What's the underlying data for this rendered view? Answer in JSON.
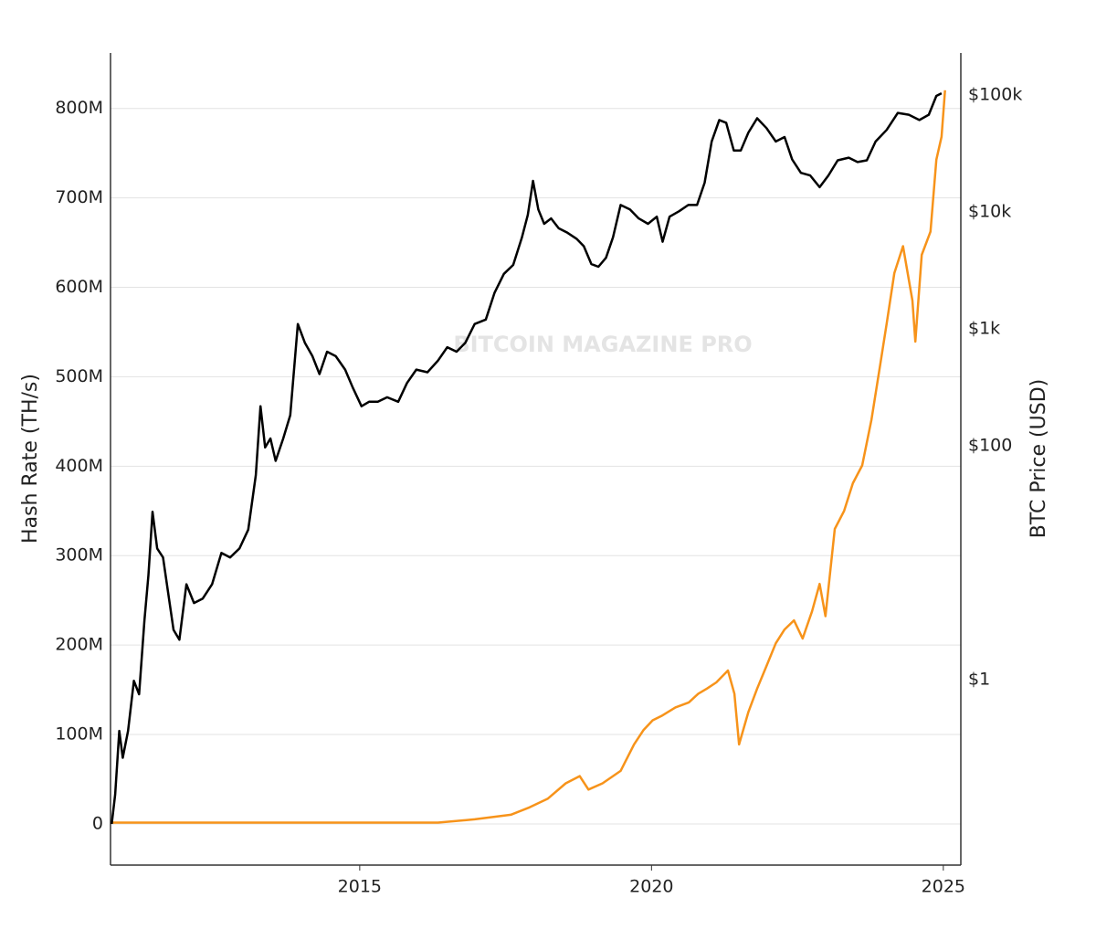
{
  "chart_data": {
    "type": "line",
    "watermark": "BITCOIN MAGAZINE PRO",
    "ylabel": "Hash Rate (TH/s)",
    "y2label": "BTC Price (USD)",
    "xlim": [
      2010.73,
      2025.3
    ],
    "xticks": [
      2015,
      2020,
      2025
    ],
    "ylim": [
      -46000000,
      862000000
    ],
    "yticks": [
      0,
      {
        "value": 100000000,
        "label": "100M"
      },
      {
        "value": 200000000,
        "label": "200M"
      },
      {
        "value": 300000000,
        "label": "300M"
      },
      {
        "value": 400000000,
        "label": "400M"
      },
      {
        "value": 500000000,
        "label": "500M"
      },
      {
        "value": 600000000,
        "label": "600M"
      },
      {
        "value": 700000000,
        "label": "700M"
      },
      {
        "value": 800000000,
        "label": "800M"
      }
    ],
    "y2lim": [
      0.026,
      229000
    ],
    "y2log": true,
    "y2ticks": [
      {
        "value": 1,
        "label": "$1"
      },
      {
        "value": 100,
        "label": "$100"
      },
      {
        "value": 1000,
        "label": "$1k"
      },
      {
        "value": 10000,
        "label": "$10k"
      },
      {
        "value": 100000,
        "label": "$100k"
      }
    ],
    "grid": true,
    "series": [
      {
        "color": "#000000",
        "axis": "y",
        "x": [
          2010.75,
          2010.81,
          2010.88,
          2010.94,
          2011.03,
          2011.13,
          2011.22,
          2011.31,
          2011.38,
          2011.45,
          2011.53,
          2011.63,
          2011.72,
          2011.81,
          2011.91,
          2012.03,
          2012.16,
          2012.31,
          2012.47,
          2012.63,
          2012.78,
          2012.94,
          2013.09,
          2013.22,
          2013.3,
          2013.38,
          2013.47,
          2013.56,
          2013.69,
          2013.81,
          2013.94,
          2014.06,
          2014.19,
          2014.31,
          2014.44,
          2014.59,
          2014.75,
          2014.88,
          2015.03,
          2015.16,
          2015.31,
          2015.47,
          2015.66,
          2015.81,
          2015.97,
          2016.16,
          2016.34,
          2016.5,
          2016.66,
          2016.81,
          2016.97,
          2017.16,
          2017.31,
          2017.47,
          2017.63,
          2017.78,
          2017.88,
          2017.97,
          2018.06,
          2018.16,
          2018.28,
          2018.41,
          2018.56,
          2018.72,
          2018.84,
          2018.97,
          2019.09,
          2019.22,
          2019.34,
          2019.47,
          2019.63,
          2019.78,
          2019.94,
          2020.09,
          2020.19,
          2020.31,
          2020.47,
          2020.63,
          2020.78,
          2020.91,
          2021.03,
          2021.16,
          2021.28,
          2021.41,
          2021.53,
          2021.66,
          2021.81,
          2021.97,
          2022.13,
          2022.28,
          2022.41,
          2022.56,
          2022.72,
          2022.88,
          2023.03,
          2023.19,
          2023.38,
          2023.53,
          2023.69,
          2023.84,
          2024.03,
          2024.22,
          2024.41,
          2024.59,
          2024.75,
          2024.88,
          2024.97
        ],
        "values": [
          0,
          33000000.0,
          104000000.0,
          74000000.0,
          104000000.0,
          160000000.0,
          145000000.0,
          227000000.0,
          278000000.0,
          349000000.0,
          308000000.0,
          298000000.0,
          257000000.0,
          217000000.0,
          206000000.0,
          268000000.0,
          247000000.0,
          252000000.0,
          268000000.0,
          303000000.0,
          298000000.0,
          308000000.0,
          329000000.0,
          390000000.0,
          467000000.0,
          421000000.0,
          431000000.0,
          406000000.0,
          431000000.0,
          457000000.0,
          559000000.0,
          538000000.0,
          523000000.0,
          503000000.0,
          528000000.0,
          523000000.0,
          508000000.0,
          488000000.0,
          467000000.0,
          472000000.0,
          472000000.0,
          477000000.0,
          472000000.0,
          493000000.0,
          508000000.0,
          505000000.0,
          518000000.0,
          533000000.0,
          528000000.0,
          538000000.0,
          559000000.0,
          564000000.0,
          594000000.0,
          615000000.0,
          625000000.0,
          656000000.0,
          681000000.0,
          719000000.0,
          687000000.0,
          671000000.0,
          677000000.0,
          666000000.0,
          661000000.0,
          654000000.0,
          646000000.0,
          626000000.0,
          623000000.0,
          633000000.0,
          656000000.0,
          692000000.0,
          687000000.0,
          677000000.0,
          671000000.0,
          679000000.0,
          651000000.0,
          679000000.0,
          685000000.0,
          692000000.0,
          692000000.0,
          717000000.0,
          763000000.0,
          787000000.0,
          784000000.0,
          753000000.0,
          753000000.0,
          773000000.0,
          789000000.0,
          778000000.0,
          763000000.0,
          768000000.0,
          743000000.0,
          728000000.0,
          725000000.0,
          712000000.0,
          725000000.0,
          742000000.0,
          745000000.0,
          740000000.0,
          742000000.0,
          763000000.0,
          776000000.0,
          795000000.0,
          793000000.0,
          787000000.0,
          793000000.0,
          814000000.0,
          817000000.0
        ]
      },
      {
        "color": "#f7931a",
        "axis": "y2",
        "x": [
          2010.75,
          2016.34,
          2016.97,
          2017.59,
          2017.91,
          2018.22,
          2018.53,
          2018.77,
          2018.92,
          2019.16,
          2019.47,
          2019.7,
          2019.86,
          2020.02,
          2020.17,
          2020.41,
          2020.64,
          2020.8,
          2020.95,
          2021.11,
          2021.31,
          2021.42,
          2021.5,
          2021.66,
          2021.81,
          2021.97,
          2022.13,
          2022.28,
          2022.44,
          2022.59,
          2022.75,
          2022.88,
          2022.98,
          2023.14,
          2023.3,
          2023.45,
          2023.61,
          2023.77,
          2023.92,
          2024.03,
          2024.16,
          2024.31,
          2024.47,
          2024.52,
          2024.63,
          2024.78,
          2024.88,
          2024.97,
          2025.03
        ],
        "values": [
          0.06,
          0.06,
          0.064,
          0.07,
          0.081,
          0.096,
          0.13,
          0.15,
          0.115,
          0.13,
          0.166,
          0.28,
          0.37,
          0.45,
          0.49,
          0.58,
          0.64,
          0.76,
          0.84,
          0.95,
          1.2,
          0.76,
          0.28,
          0.53,
          0.84,
          1.31,
          2.05,
          2.69,
          3.22,
          2.25,
          3.85,
          6.6,
          3.5,
          19.5,
          27.8,
          47.9,
          68,
          168,
          498,
          1110,
          3000,
          5100,
          1750,
          780,
          4300,
          6800,
          28000,
          44000,
          110000
        ]
      }
    ]
  }
}
